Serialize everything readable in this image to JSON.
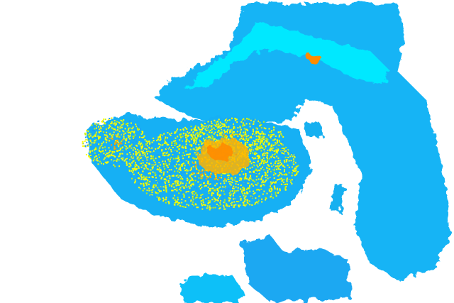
{
  "colors": {
    "background": "#ffffff",
    "light": "#00bfff",
    "light_mid": "#1ea0f0",
    "cyan": "#00f0ff",
    "moderate": "#ffff00",
    "moderate_green": "#c8f000",
    "heavy": "#ffa000",
    "heavy_core": "#ff7800"
  },
  "layers": [
    "light-echo",
    "moderate-echo",
    "heavy-echo"
  ]
}
